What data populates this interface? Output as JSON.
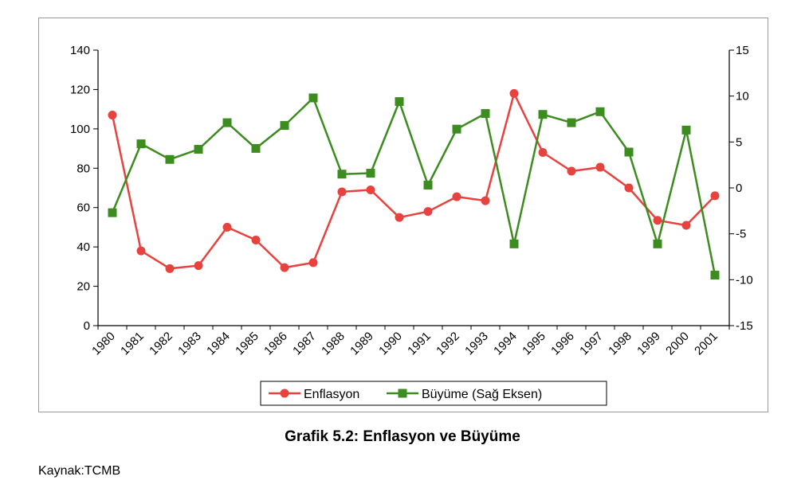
{
  "caption": "Grafik 5.2: Enflasyon ve Büyüme",
  "source": "Kaynak:TCMB",
  "chart_data": {
    "type": "line",
    "title": "",
    "xlabel": "",
    "ylabel": "",
    "categories": [
      "1980",
      "1981",
      "1982",
      "1983",
      "1984",
      "1985",
      "1986",
      "1987",
      "1988",
      "1989",
      "1990",
      "1991",
      "1992",
      "1993",
      "1994",
      "1995",
      "1996",
      "1997",
      "1998",
      "1999",
      "2000",
      "2001"
    ],
    "y_left": {
      "min": 0,
      "max": 140,
      "ticks": [
        "0",
        "20",
        "40",
        "60",
        "80",
        "100",
        "120",
        "140"
      ]
    },
    "y_right": {
      "min": -15,
      "max": 15,
      "ticks": [
        "-15",
        "-10",
        "-5",
        "0",
        "5",
        "10",
        "15"
      ]
    },
    "grid": false,
    "legend_position": "bottom",
    "series": [
      {
        "name": "Enflasyon",
        "axis": "left",
        "color": "#e8423f",
        "marker": "circle",
        "values": [
          107,
          38,
          29,
          30.5,
          50,
          43.5,
          29.5,
          32,
          68,
          69,
          55,
          58,
          65.5,
          63.5,
          118,
          88,
          78.5,
          80.5,
          70,
          53.5,
          51,
          66
        ]
      },
      {
        "name": "Büyüme (Sağ Eksen)",
        "axis": "right",
        "color": "#3d8c1f",
        "marker": "square",
        "values": [
          -2.7,
          4.8,
          3.1,
          4.2,
          7.1,
          4.3,
          6.8,
          9.8,
          1.5,
          1.6,
          9.4,
          0.3,
          6.4,
          8.1,
          -6.1,
          8.0,
          7.1,
          8.3,
          3.9,
          -6.1,
          6.3,
          -9.5
        ]
      }
    ]
  }
}
